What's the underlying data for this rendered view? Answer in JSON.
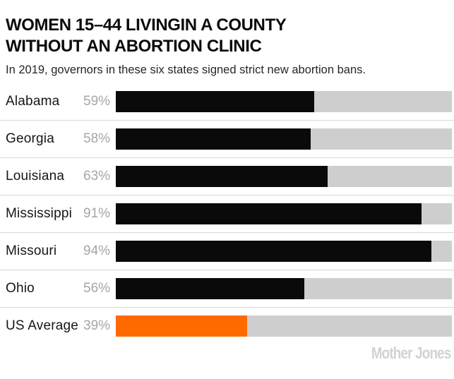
{
  "header": {
    "title_line1": "WOMEN 15–44 LIVINGIN A COUNTY",
    "title_line2": "WITHOUT AN ABORTION CLINIC",
    "subtitle": "In 2019, governors in these six states signed strict new abortion bans."
  },
  "chart_data": {
    "type": "bar",
    "orientation": "horizontal",
    "title": "WOMEN 15–44 LIVINGIN A COUNTY WITHOUT AN ABORTION CLINIC",
    "subtitle": "In 2019, governors in these six states signed strict new abortion bans.",
    "unit": "%",
    "xlim": [
      0,
      100
    ],
    "grid": false,
    "legend": false,
    "categories": [
      "Alabama",
      "Georgia",
      "Louisiana",
      "Mississippi",
      "Missouri",
      "Ohio",
      "US Average"
    ],
    "values": [
      59,
      58,
      63,
      91,
      94,
      56,
      39
    ],
    "rows": [
      {
        "state": "Alabama",
        "label": "59%",
        "value": 59,
        "color": "#0a0a0a"
      },
      {
        "state": "Georgia",
        "label": "58%",
        "value": 58,
        "color": "#0a0a0a"
      },
      {
        "state": "Louisiana",
        "label": "63%",
        "value": 63,
        "color": "#0a0a0a"
      },
      {
        "state": "Mississippi",
        "label": "91%",
        "value": 91,
        "color": "#0a0a0a"
      },
      {
        "state": "Missouri",
        "label": "94%",
        "value": 94,
        "color": "#0a0a0a"
      },
      {
        "state": "Ohio",
        "label": "56%",
        "value": 56,
        "color": "#0a0a0a"
      },
      {
        "state": "US Average",
        "label": "39%",
        "value": 39,
        "color": "#ff6a00"
      }
    ],
    "colors": {
      "bar": "#0a0a0a",
      "highlight": "#ff6a00",
      "track": "#cecece",
      "value_label": "#a6a6a6"
    }
  },
  "footer": {
    "brand": "Mother Jones"
  }
}
